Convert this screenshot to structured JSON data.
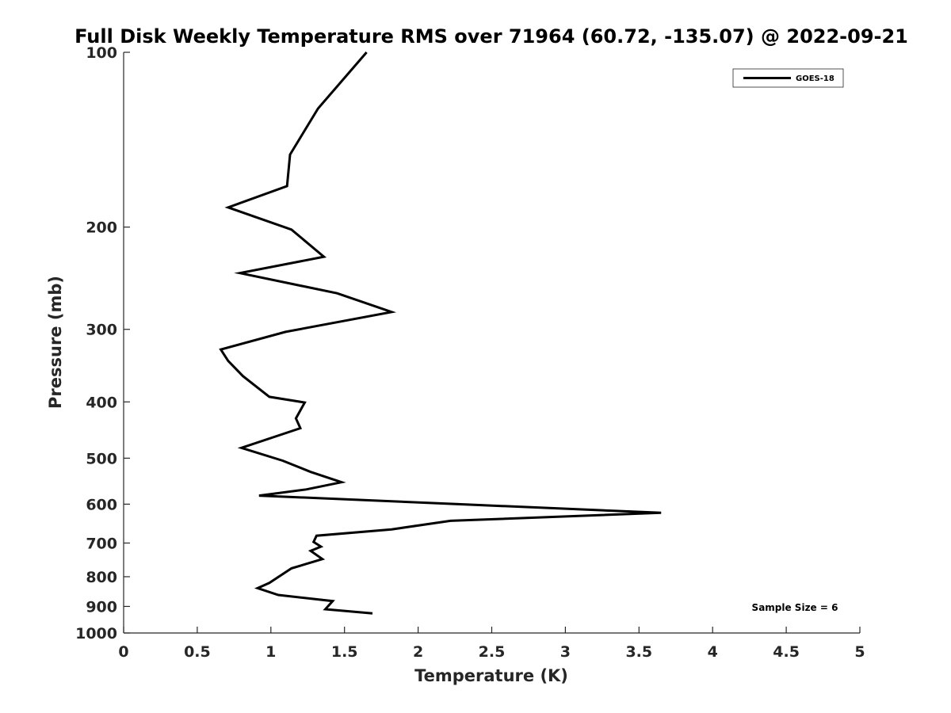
{
  "chart_data": {
    "type": "line",
    "title": "Full Disk Weekly Temperature RMS over 71964 (60.72, -135.07) @ 2022-09-21",
    "xlabel": "Temperature (K)",
    "ylabel": "Pressure (mb)",
    "xlim": [
      0,
      5
    ],
    "ylim": [
      1000,
      100
    ],
    "y_scale": "log",
    "y_reversed": true,
    "xticks": [
      0,
      0.5,
      1,
      1.5,
      2,
      2.5,
      3,
      3.5,
      4,
      4.5,
      5
    ],
    "xtick_labels": [
      "0",
      "0.5",
      "1",
      "1.5",
      "2",
      "2.5",
      "3",
      "3.5",
      "4",
      "4.5",
      "5"
    ],
    "yticks": [
      100,
      200,
      300,
      400,
      500,
      600,
      700,
      800,
      900,
      1000
    ],
    "ytick_labels": [
      "100",
      "200",
      "300",
      "400",
      "500",
      "600",
      "700",
      "800",
      "900",
      "1000"
    ],
    "grid": false,
    "legend_position": "top-right",
    "series": [
      {
        "name": "GOES-18",
        "color": "#000000",
        "x": [
          1.65,
          1.32,
          1.13,
          1.11,
          0.71,
          1.14,
          1.36,
          0.79,
          1.45,
          1.82,
          1.1,
          0.66,
          0.71,
          0.81,
          0.99,
          1.23,
          1.17,
          1.2,
          0.8,
          1.08,
          1.27,
          1.48,
          1.24,
          0.92,
          3.65,
          2.22,
          1.82,
          1.31,
          1.29,
          1.34,
          1.27,
          1.35,
          1.14,
          0.99,
          0.91,
          1.05,
          1.42,
          1.37,
          1.69
        ],
        "y": [
          100,
          125,
          150,
          170,
          185,
          202,
          225,
          240,
          260,
          280,
          303,
          325,
          340,
          361,
          392,
          401,
          427,
          444,
          480,
          505,
          528,
          550,
          566,
          580,
          621,
          641,
          663,
          680,
          697,
          710,
          722,
          746,
          774,
          820,
          837,
          860,
          881,
          910,
          925
        ]
      }
    ],
    "annotations": [
      "Sample Size = 6"
    ]
  }
}
